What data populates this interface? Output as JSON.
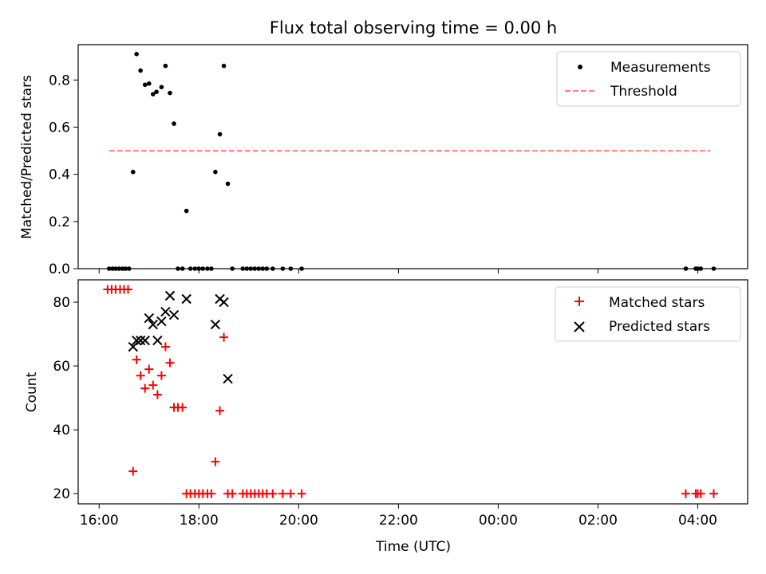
{
  "chart_data": [
    {
      "type": "scatter",
      "title": "Flux total observing time = 0.00 h",
      "xlabel": "",
      "ylabel": "Matched/Predicted stars",
      "xlim": [
        15.58,
        29.0
      ],
      "ylim": [
        0.0,
        0.95
      ],
      "xticks": [
        16,
        18,
        20,
        22,
        24,
        26,
        28
      ],
      "yticks": [
        0.0,
        0.2,
        0.4,
        0.6,
        0.8
      ],
      "ytick_labels": [
        "0.0",
        "0.2",
        "0.4",
        "0.6",
        "0.8"
      ],
      "legend_position": "upper right",
      "series": [
        {
          "name": "Measurements",
          "marker": "dot",
          "color": "#000000",
          "points": [
            [
              16.2,
              0.0
            ],
            [
              16.27,
              0.0
            ],
            [
              16.33,
              0.0
            ],
            [
              16.4,
              0.0
            ],
            [
              16.47,
              0.0
            ],
            [
              16.53,
              0.0
            ],
            [
              16.6,
              0.0
            ],
            [
              16.68,
              0.41
            ],
            [
              16.75,
              0.91
            ],
            [
              16.83,
              0.84
            ],
            [
              16.92,
              0.78
            ],
            [
              17.0,
              0.785
            ],
            [
              17.08,
              0.74
            ],
            [
              17.15,
              0.75
            ],
            [
              17.25,
              0.77
            ],
            [
              17.33,
              0.86
            ],
            [
              17.42,
              0.745
            ],
            [
              17.5,
              0.615
            ],
            [
              17.58,
              0.0
            ],
            [
              17.67,
              0.0
            ],
            [
              17.75,
              0.245
            ],
            [
              17.83,
              0.0
            ],
            [
              17.92,
              0.0
            ],
            [
              18.0,
              0.0
            ],
            [
              18.08,
              0.0
            ],
            [
              18.17,
              0.0
            ],
            [
              18.25,
              0.0
            ],
            [
              18.33,
              0.41
            ],
            [
              18.42,
              0.57
            ],
            [
              18.5,
              0.86
            ],
            [
              18.58,
              0.36
            ],
            [
              18.67,
              0.0
            ],
            [
              18.88,
              0.0
            ],
            [
              18.96,
              0.0
            ],
            [
              19.04,
              0.0
            ],
            [
              19.12,
              0.0
            ],
            [
              19.2,
              0.0
            ],
            [
              19.28,
              0.0
            ],
            [
              19.36,
              0.0
            ],
            [
              19.48,
              0.0
            ],
            [
              19.68,
              0.0
            ],
            [
              19.84,
              0.0
            ],
            [
              20.06,
              0.0
            ],
            [
              27.76,
              0.0
            ],
            [
              27.96,
              0.0
            ],
            [
              28.0,
              0.0
            ],
            [
              28.06,
              0.0
            ],
            [
              28.32,
              0.0
            ]
          ]
        },
        {
          "name": "Threshold",
          "marker": "dashed-line",
          "color": "#ff7f7f",
          "points": [
            [
              16.2,
              0.5
            ],
            [
              28.25,
              0.5
            ]
          ]
        }
      ]
    },
    {
      "type": "scatter",
      "title": "",
      "xlabel": "Time (UTC)",
      "ylabel": "Count",
      "xlim": [
        15.58,
        29.0
      ],
      "ylim": [
        16.8,
        87.0
      ],
      "xticks": [
        16,
        18,
        20,
        22,
        24,
        26,
        28
      ],
      "xtick_labels": [
        "16:00",
        "18:00",
        "20:00",
        "22:00",
        "00:00",
        "02:00",
        "04:00"
      ],
      "yticks": [
        20,
        40,
        60,
        80
      ],
      "ytick_labels": [
        "20",
        "40",
        "60",
        "80"
      ],
      "legend_position": "upper right",
      "series": [
        {
          "name": "Matched stars",
          "marker": "plus",
          "color": "#ff0000",
          "points": [
            [
              16.17,
              84
            ],
            [
              16.25,
              84
            ],
            [
              16.33,
              84
            ],
            [
              16.42,
              84
            ],
            [
              16.5,
              84
            ],
            [
              16.58,
              84
            ],
            [
              16.68,
              27
            ],
            [
              16.75,
              62
            ],
            [
              16.83,
              57
            ],
            [
              16.92,
              53
            ],
            [
              17.0,
              59
            ],
            [
              17.08,
              54
            ],
            [
              17.17,
              51
            ],
            [
              17.25,
              57
            ],
            [
              17.33,
              66
            ],
            [
              17.42,
              61
            ],
            [
              17.5,
              47
            ],
            [
              17.58,
              47
            ],
            [
              17.67,
              47
            ],
            [
              17.75,
              20
            ],
            [
              17.83,
              20
            ],
            [
              17.92,
              20
            ],
            [
              18.0,
              20
            ],
            [
              18.08,
              20
            ],
            [
              18.17,
              20
            ],
            [
              18.25,
              20
            ],
            [
              18.33,
              30
            ],
            [
              18.42,
              46
            ],
            [
              18.5,
              69
            ],
            [
              18.58,
              20
            ],
            [
              18.67,
              20
            ],
            [
              18.88,
              20
            ],
            [
              18.96,
              20
            ],
            [
              19.04,
              20
            ],
            [
              19.12,
              20
            ],
            [
              19.2,
              20
            ],
            [
              19.28,
              20
            ],
            [
              19.36,
              20
            ],
            [
              19.48,
              20
            ],
            [
              19.68,
              20
            ],
            [
              19.84,
              20
            ],
            [
              20.06,
              20
            ],
            [
              27.76,
              20
            ],
            [
              27.96,
              20
            ],
            [
              28.0,
              20
            ],
            [
              28.06,
              20
            ],
            [
              28.32,
              20
            ]
          ]
        },
        {
          "name": "Predicted stars",
          "marker": "x",
          "color": "#000000",
          "points": [
            [
              16.68,
              66
            ],
            [
              16.75,
              68
            ],
            [
              16.83,
              68
            ],
            [
              16.92,
              68
            ],
            [
              17.0,
              75
            ],
            [
              17.08,
              73
            ],
            [
              17.17,
              68
            ],
            [
              17.25,
              74
            ],
            [
              17.33,
              77
            ],
            [
              17.42,
              82
            ],
            [
              17.5,
              76
            ],
            [
              17.75,
              81
            ],
            [
              18.33,
              73
            ],
            [
              18.42,
              81
            ],
            [
              18.5,
              80
            ],
            [
              18.58,
              56
            ]
          ]
        }
      ]
    }
  ]
}
